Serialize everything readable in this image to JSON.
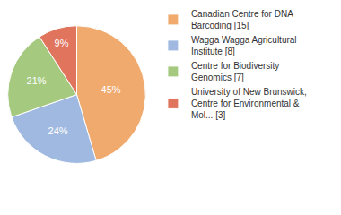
{
  "chart_data": {
    "type": "pie",
    "categories": [
      "Canadian Centre for DNA Barcoding [15]",
      "Wagga Wagga Agricultural Institute [8]",
      "Centre for Biodiversity Genomics [7]",
      "University of New Brunswick, Centre for Environmental & Mol... [3]"
    ],
    "values": [
      45,
      24,
      21,
      9
    ],
    "value_labels": [
      "45%",
      "24%",
      "21%",
      "9%"
    ],
    "colors": [
      "#f0aa6e",
      "#a0b9e1",
      "#a5ca7f",
      "#e0745c"
    ],
    "data_labels": true,
    "legend": "right"
  }
}
